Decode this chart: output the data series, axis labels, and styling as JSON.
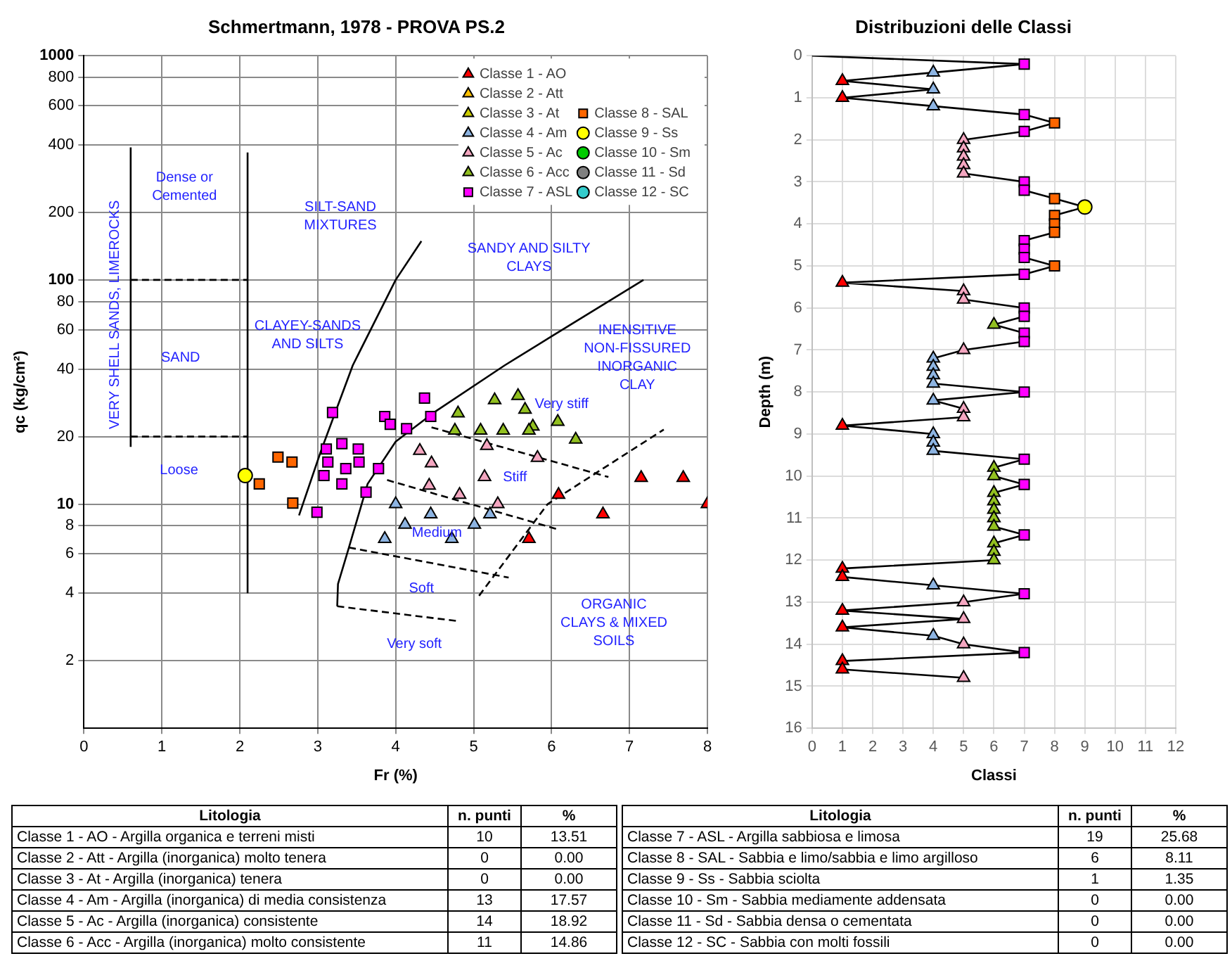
{
  "chart_data": [
    {
      "type": "scatter",
      "title": "Schmertmann, 1978 - PROVA PS.2",
      "xlabel": "Fr (%)",
      "ylabel": "qc (kg/cm²)",
      "xlim": [
        0,
        8
      ],
      "xticks": [
        0,
        1,
        2,
        3,
        4,
        5,
        6,
        7,
        8
      ],
      "ylim": [
        1,
        1000
      ],
      "yticks": [
        2,
        4,
        6,
        8,
        10,
        20,
        40,
        60,
        80,
        100,
        200,
        400,
        600,
        800,
        1000
      ],
      "log": "y",
      "grid": true,
      "legend": "top right",
      "series": [
        {
          "name": "Classe 1 - AO",
          "color": "#ff0000",
          "marker": "triangle",
          "x": [
            7.15,
            7.69,
            8.0,
            6.66,
            6.09,
            5.71
          ],
          "values": [
            13.1,
            13.1,
            10.0,
            9.0,
            11.0,
            7.0
          ]
        },
        {
          "name": "Classe 2 - Att",
          "color": "#ffc000",
          "marker": "triangle"
        },
        {
          "name": "Classe 3 - At",
          "color": "#cccc00",
          "marker": "triangle"
        },
        {
          "name": "Classe 4 - Am",
          "color": "#8db4e2",
          "marker": "triangle",
          "x": [
            4.0,
            4.45,
            4.12,
            3.86,
            4.72,
            5.01,
            5.21
          ],
          "values": [
            10.0,
            9.0,
            8.1,
            7.0,
            7.0,
            8.1,
            9.0
          ]
        },
        {
          "name": "Classe 5 - Ac",
          "color": "#f4a6c0",
          "marker": "triangle",
          "x": [
            4.31,
            4.46,
            5.17,
            5.82,
            5.14,
            4.43,
            4.82,
            5.31
          ],
          "values": [
            17.3,
            15.2,
            18.2,
            16.1,
            13.2,
            12.1,
            11.0,
            10.0
          ]
        },
        {
          "name": "Classe 6 - Acc",
          "color": "#92c020",
          "marker": "triangle",
          "x": [
            4.8,
            5.27,
            5.57,
            5.66,
            5.76,
            6.08,
            6.31,
            4.76,
            5.09,
            5.38,
            5.71
          ],
          "values": [
            25.4,
            29.1,
            30.4,
            26.4,
            22.2,
            23.3,
            19.4,
            21.3,
            21.3,
            21.3,
            21.3
          ]
        },
        {
          "name": "Classe 7 - ASL",
          "color": "#ff00ff",
          "marker": "square",
          "x": [
            3.19,
            3.86,
            3.93,
            4.14,
            4.37,
            4.45,
            3.11,
            3.31,
            3.52,
            3.13,
            3.36,
            3.53,
            3.08,
            3.31,
            3.78,
            3.62,
            2.99
          ],
          "values": [
            25.6,
            24.6,
            22.7,
            21.7,
            29.7,
            24.6,
            17.6,
            18.6,
            17.6,
            15.4,
            14.4,
            15.4,
            13.4,
            12.3,
            14.4,
            11.3,
            9.2
          ]
        },
        {
          "name": "Classe 8 - SAL",
          "color": "#ff6600",
          "marker": "square",
          "x": [
            2.49,
            2.67,
            2.25,
            2.68
          ],
          "values": [
            16.2,
            15.4,
            12.3,
            10.1
          ]
        },
        {
          "name": "Classe 9 - Ss",
          "color": "#ffff00",
          "marker": "circle",
          "x": [
            2.07
          ],
          "values": [
            13.4
          ]
        },
        {
          "name": "Classe 10 - Sm",
          "color": "#00cc00",
          "marker": "circle"
        },
        {
          "name": "Classe 11 - Sd",
          "color": "#808080",
          "marker": "circle"
        },
        {
          "name": "Classe 12 - SC",
          "color": "#33cccc",
          "marker": "circle"
        },
        {
          "type": "line",
          "color": "#000000",
          "marker": "none",
          "line_style": "solid",
          "x": [
            2.76,
            3.04,
            3.45,
            4.0,
            4.33
          ],
          "values": [
            8.9,
            17.2,
            41.6,
            100,
            149
          ]
        },
        {
          "type": "line",
          "color": "#000000",
          "marker": "none",
          "line_style": "solid",
          "x": [
            3.25,
            3.26,
            3.4,
            3.64,
            4.0,
            4.49,
            5.4,
            6.0,
            7.18
          ],
          "values": [
            3.5,
            4.4,
            6.4,
            12.3,
            19,
            25.6,
            41.6,
            56,
            100
          ]
        },
        {
          "type": "line",
          "color": "#000000",
          "marker": "none",
          "line_style": "solid",
          "x": [
            0.6,
            0.6
          ],
          "values": [
            18,
            390
          ]
        },
        {
          "type": "line",
          "color": "#000000",
          "marker": "none",
          "line_style": "solid",
          "x": [
            2.1,
            2.1
          ],
          "values": [
            4,
            370
          ]
        },
        {
          "type": "line",
          "color": "#000000",
          "marker": "none",
          "line_style": "dashed",
          "x": [
            0.6,
            2.1
          ],
          "values": [
            100,
            100
          ]
        },
        {
          "type": "line",
          "color": "#000000",
          "marker": "none",
          "line_style": "dashed",
          "x": [
            0.6,
            2.1
          ],
          "values": [
            20,
            20
          ]
        },
        {
          "type": "line",
          "color": "#000000",
          "marker": "none",
          "line_style": "dashed",
          "x": [
            4.46,
            6.73
          ],
          "values": [
            22,
            13.2
          ]
        },
        {
          "type": "line",
          "color": "#000000",
          "marker": "none",
          "line_style": "dashed",
          "x": [
            3.89,
            6.09
          ],
          "values": [
            12.8,
            7.7
          ]
        },
        {
          "type": "line",
          "color": "#000000",
          "marker": "none",
          "line_style": "dashed",
          "x": [
            3.4,
            5.45
          ],
          "values": [
            6.4,
            4.7
          ]
        },
        {
          "type": "line",
          "color": "#000000",
          "marker": "none",
          "line_style": "dashed",
          "x": [
            3.25,
            4.82
          ],
          "values": [
            3.5,
            3.0
          ]
        },
        {
          "type": "line",
          "color": "#000000",
          "marker": "none",
          "line_style": "dashed",
          "x": [
            5.07,
            5.95,
            7.44
          ],
          "values": [
            3.9,
            10,
            21.5
          ]
        }
      ],
      "annotations": [
        "VERY SHELL SANDS, LIMEROCKS",
        "Dense or\nCemented",
        "SAND",
        "Loose",
        "SILT-SAND\nMIXTURES",
        "CLAYEY-SANDS\nAND SILTS",
        "SANDY AND SILTY\nCLAYS",
        "INENSITIVE\nNON-FISSURED\nINORGANIC\nCLAY",
        "Very stiff",
        "Stiff",
        "Medium",
        "Soft",
        "Very soft",
        "ORGANIC\nCLAYS & MIXED\nSOILS"
      ]
    },
    {
      "type": "line",
      "title": "Distribuzioni delle Classi",
      "xlabel": "Classi",
      "ylabel": "Depth (m)",
      "xlim": [
        0,
        12
      ],
      "xticks": [
        0,
        1,
        2,
        3,
        4,
        5,
        6,
        7,
        8,
        9,
        10,
        11,
        12
      ],
      "ylim": [
        16,
        0
      ],
      "yticks": [
        0,
        1,
        2,
        3,
        4,
        5,
        6,
        7,
        8,
        9,
        10,
        11,
        12,
        13,
        14,
        15,
        16
      ],
      "grid": true,
      "legend": false,
      "series": [
        {
          "type": "line",
          "color": "#000000",
          "marker": "none",
          "x": [
            0,
            7,
            4,
            1,
            4,
            1,
            4,
            7,
            8,
            7,
            5,
            5,
            5,
            5,
            5,
            7,
            7,
            8,
            9,
            8,
            8,
            8,
            7,
            7,
            7,
            8,
            7,
            1,
            5,
            5,
            7,
            7,
            6,
            7,
            7,
            5,
            4,
            4,
            4,
            4,
            7,
            4,
            5,
            5,
            1,
            4,
            4,
            4,
            7,
            6,
            6,
            7,
            6,
            6,
            6,
            6,
            6,
            7,
            6,
            6,
            6,
            1,
            1,
            4,
            7,
            5,
            1,
            5,
            1,
            4,
            5,
            7,
            1,
            1,
            5
          ],
          "values": [
            0,
            0.2,
            0.4,
            0.6,
            0.8,
            1.0,
            1.2,
            1.4,
            1.6,
            1.8,
            2.0,
            2.2,
            2.4,
            2.6,
            2.8,
            3.0,
            3.2,
            3.4,
            3.6,
            3.8,
            4.0,
            4.2,
            4.4,
            4.6,
            4.8,
            5.0,
            5.2,
            5.4,
            5.6,
            5.8,
            6.0,
            6.2,
            6.4,
            6.6,
            6.8,
            7.0,
            7.2,
            7.4,
            7.6,
            7.8,
            8.0,
            8.2,
            8.4,
            8.6,
            8.8,
            9.0,
            9.2,
            9.4,
            9.6,
            9.8,
            10.0,
            10.2,
            10.4,
            10.6,
            10.8,
            11.0,
            11.2,
            11.4,
            11.6,
            11.8,
            12.0,
            12.2,
            12.4,
            12.6,
            12.8,
            13.0,
            13.2,
            13.4,
            13.6,
            13.8,
            14.0,
            14.2,
            14.4,
            14.6,
            14.8
          ]
        },
        {
          "type": "scatter",
          "color": "#ff0000",
          "marker": "triangle",
          "x": [
            1,
            1,
            1,
            1,
            1,
            1,
            1,
            1,
            1,
            1
          ],
          "values": [
            0.6,
            1.0,
            5.4,
            8.8,
            12.2,
            12.4,
            13.2,
            13.6,
            14.4,
            14.6
          ]
        },
        {
          "type": "scatter",
          "color": "#8db4e2",
          "marker": "triangle",
          "x": [
            4,
            4,
            4,
            4,
            4,
            4,
            4,
            4,
            4,
            4,
            4,
            4,
            4
          ],
          "values": [
            0.4,
            0.8,
            1.2,
            7.2,
            7.4,
            7.6,
            7.8,
            8.2,
            9.0,
            9.2,
            9.4,
            12.6,
            13.8
          ]
        },
        {
          "type": "scatter",
          "color": "#f4a6c0",
          "marker": "triangle",
          "x": [
            5,
            5,
            5,
            5,
            5,
            5,
            5,
            5,
            5,
            5,
            5,
            5,
            5,
            5
          ],
          "values": [
            2.0,
            2.2,
            2.4,
            2.6,
            2.8,
            5.6,
            5.8,
            7.0,
            8.4,
            8.6,
            13.0,
            13.4,
            14.0,
            14.8
          ]
        },
        {
          "type": "scatter",
          "color": "#92c020",
          "marker": "triangle",
          "x": [
            6,
            6,
            6,
            6,
            6,
            6,
            6,
            6,
            6,
            6,
            6
          ],
          "values": [
            6.4,
            9.8,
            10.0,
            10.4,
            10.6,
            10.8,
            11.0,
            11.2,
            11.6,
            11.8,
            12.0
          ]
        },
        {
          "type": "scatter",
          "color": "#ff00ff",
          "marker": "square",
          "x": [
            7,
            7,
            7,
            7,
            7,
            7,
            7,
            7,
            7,
            7,
            7,
            7,
            7,
            7,
            7,
            7,
            7,
            7,
            7
          ],
          "values": [
            0.2,
            1.4,
            1.8,
            3.0,
            3.2,
            4.4,
            4.6,
            4.8,
            5.2,
            6.0,
            6.2,
            6.6,
            6.8,
            8.0,
            9.6,
            10.2,
            11.4,
            12.8,
            14.2
          ]
        },
        {
          "type": "scatter",
          "color": "#ff6600",
          "marker": "square",
          "x": [
            8,
            8,
            8,
            8,
            8,
            8
          ],
          "values": [
            1.6,
            3.4,
            3.8,
            4.0,
            4.2,
            5.0
          ]
        },
        {
          "type": "scatter",
          "color": "#ffff00",
          "marker": "circle",
          "x": [
            9
          ],
          "values": [
            3.6
          ]
        }
      ]
    },
    {
      "type": "other",
      "annotations": [
        "Litologia",
        "n. punti",
        "%",
        "Classe 1 - AO - Argilla organica e terreni misti",
        "10",
        "13.51",
        "Classe 2 - Att - Argilla (inorganica) molto tenera",
        "0",
        "0.00",
        "Classe 3 - At - Argilla (inorganica) tenera",
        "0",
        "0.00",
        "Classe 4 - Am - Argilla (inorganica) di media consistenza",
        "13",
        "17.57",
        "Classe 5 - Ac - Argilla (inorganica) consistente",
        "14",
        "18.92",
        "Classe 6 - Acc - Argilla (inorganica) molto consistente",
        "11",
        "14.86",
        "Litologia",
        "n. punti",
        "%",
        "Classe 7 - ASL - Argilla sabbiosa e limosa",
        "19",
        "25.68",
        "Classe 8 - SAL - Sabbia e limo/sabbia e limo argilloso",
        "6",
        "8.11",
        "Classe 9 - Ss - Sabbia sciolta",
        "1",
        "1.35",
        "Classe 10 - Sm - Sabbia mediamente addensata",
        "0",
        "0.00",
        "Classe 11 - Sd - Sabbia densa o cementata",
        "0",
        "0.00",
        "Classe 12 - SC - Sabbia con molti fossili",
        "0",
        "0.00"
      ]
    }
  ]
}
